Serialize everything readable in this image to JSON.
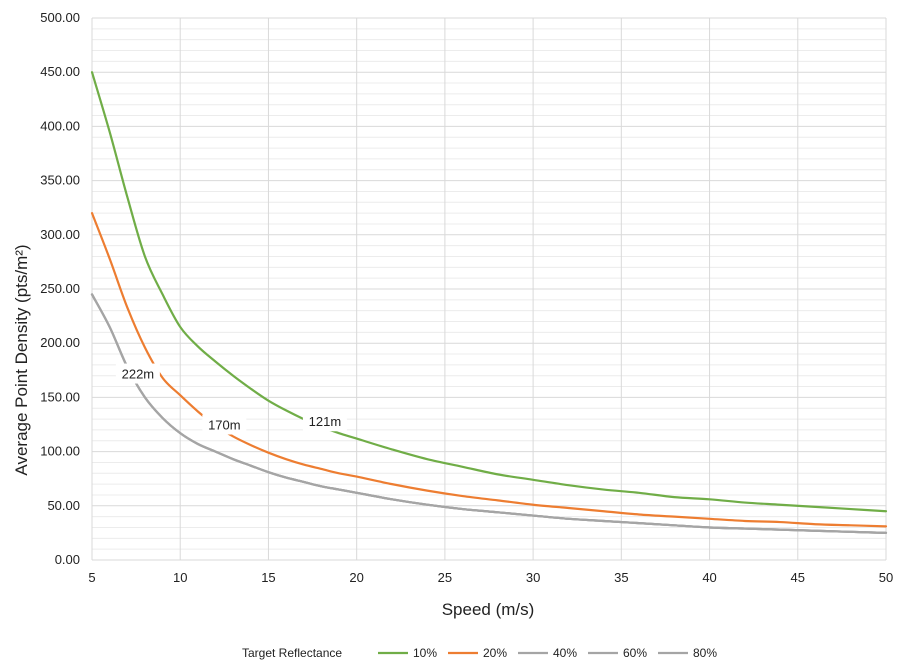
{
  "chart_data": {
    "type": "line",
    "title": "",
    "xlabel": "Speed (m/s)",
    "ylabel": "Average Point Density  (pts/m²)",
    "xlim": [
      5,
      50
    ],
    "ylim": [
      0,
      500
    ],
    "x_ticks": [
      5,
      10,
      15,
      20,
      25,
      30,
      35,
      40,
      45,
      50
    ],
    "y_ticks": [
      "0.00",
      "50.00",
      "100.00",
      "150.00",
      "200.00",
      "250.00",
      "300.00",
      "350.00",
      "400.00",
      "450.00",
      "500.00"
    ],
    "grid": true,
    "legend": {
      "title": "Target Reflectance",
      "placement": "bottom"
    },
    "x": [
      5,
      6,
      7,
      8,
      9,
      10,
      11,
      12,
      13,
      14,
      15,
      16,
      17,
      18,
      19,
      20,
      22,
      24,
      26,
      28,
      30,
      32,
      34,
      36,
      38,
      40,
      42,
      44,
      46,
      48,
      50
    ],
    "series": [
      {
        "name": "10%",
        "color": "#70ad47",
        "values": [
          450,
          395,
          335,
          280,
          245,
          215,
          197,
          183,
          170,
          158,
          147,
          138,
          130,
          123,
          117,
          112,
          102,
          93,
          86,
          79,
          74,
          69,
          65,
          62,
          58,
          56,
          53,
          51,
          49,
          47,
          45
        ]
      },
      {
        "name": "20%",
        "color": "#ed7d31",
        "values": [
          320,
          278,
          233,
          196,
          168,
          152,
          137,
          124,
          114,
          106,
          99,
          93,
          88,
          84,
          80,
          77,
          70,
          64,
          59,
          55,
          51,
          48,
          45,
          42,
          40,
          38,
          36,
          35,
          33,
          32,
          31
        ]
      },
      {
        "name": "40%",
        "color": "#a5a5a5",
        "values": [
          245,
          215,
          178,
          150,
          131,
          117,
          107,
          100,
          93,
          87,
          81,
          76,
          72,
          68,
          65,
          62,
          56,
          51,
          47,
          44,
          41,
          38,
          36,
          34,
          32,
          30,
          29,
          28,
          27,
          26,
          25
        ]
      },
      {
        "name": "60%",
        "color": "#a5a5a5",
        "values": [
          245,
          215,
          178,
          150,
          131,
          117,
          107,
          100,
          93,
          87,
          81,
          76,
          72,
          68,
          65,
          62,
          56,
          51,
          47,
          44,
          41,
          38,
          36,
          34,
          32,
          30,
          29,
          28,
          27,
          26,
          25
        ]
      },
      {
        "name": "80%",
        "color": "#a5a5a5",
        "values": [
          245,
          215,
          178,
          150,
          131,
          117,
          107,
          100,
          93,
          87,
          81,
          76,
          72,
          68,
          65,
          62,
          56,
          51,
          47,
          44,
          41,
          38,
          36,
          34,
          32,
          30,
          29,
          28,
          27,
          26,
          25
        ]
      }
    ],
    "annotations": [
      {
        "text": "222m",
        "x": 7.6,
        "y": 172
      },
      {
        "text": "170m",
        "x": 12.5,
        "y": 125
      },
      {
        "text": "121m",
        "x": 18.2,
        "y": 128
      }
    ]
  }
}
